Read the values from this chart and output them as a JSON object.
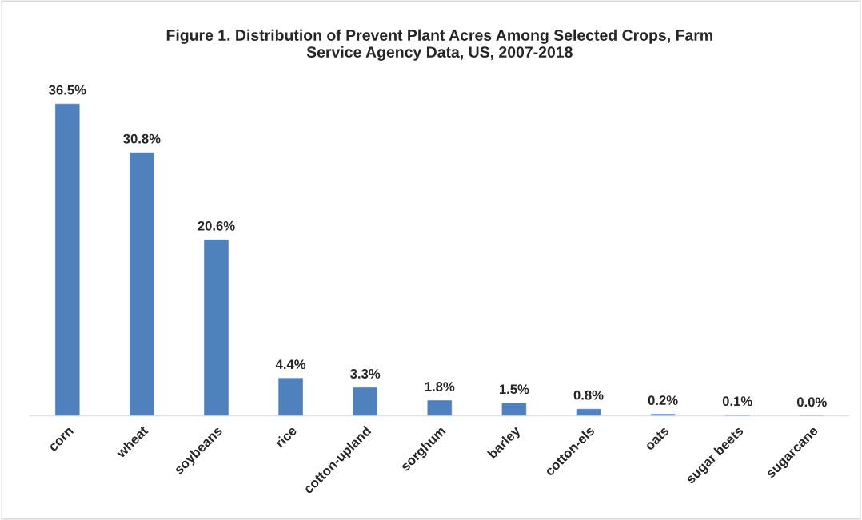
{
  "chart_data": {
    "type": "bar",
    "title": "Figure 1. Distribution of Prevent Plant Acres Among Selected Crops, Farm\nService Agency Data, US, 2007-2018",
    "categories": [
      "corn",
      "wheat",
      "soybeans",
      "rice",
      "cotton-upland",
      "sorghum",
      "barley",
      "cotton-els",
      "oats",
      "sugar beets",
      "sugarcane"
    ],
    "values": [
      36.5,
      30.8,
      20.6,
      4.4,
      3.3,
      1.8,
      1.5,
      0.8,
      0.2,
      0.1,
      0.0
    ],
    "value_labels": [
      "36.5%",
      "30.8%",
      "20.6%",
      "4.4%",
      "3.3%",
      "1.8%",
      "1.5%",
      "0.8%",
      "0.2%",
      "0.1%",
      "0.0%"
    ],
    "color": "#4f81bd",
    "grid": false,
    "legend": false
  }
}
